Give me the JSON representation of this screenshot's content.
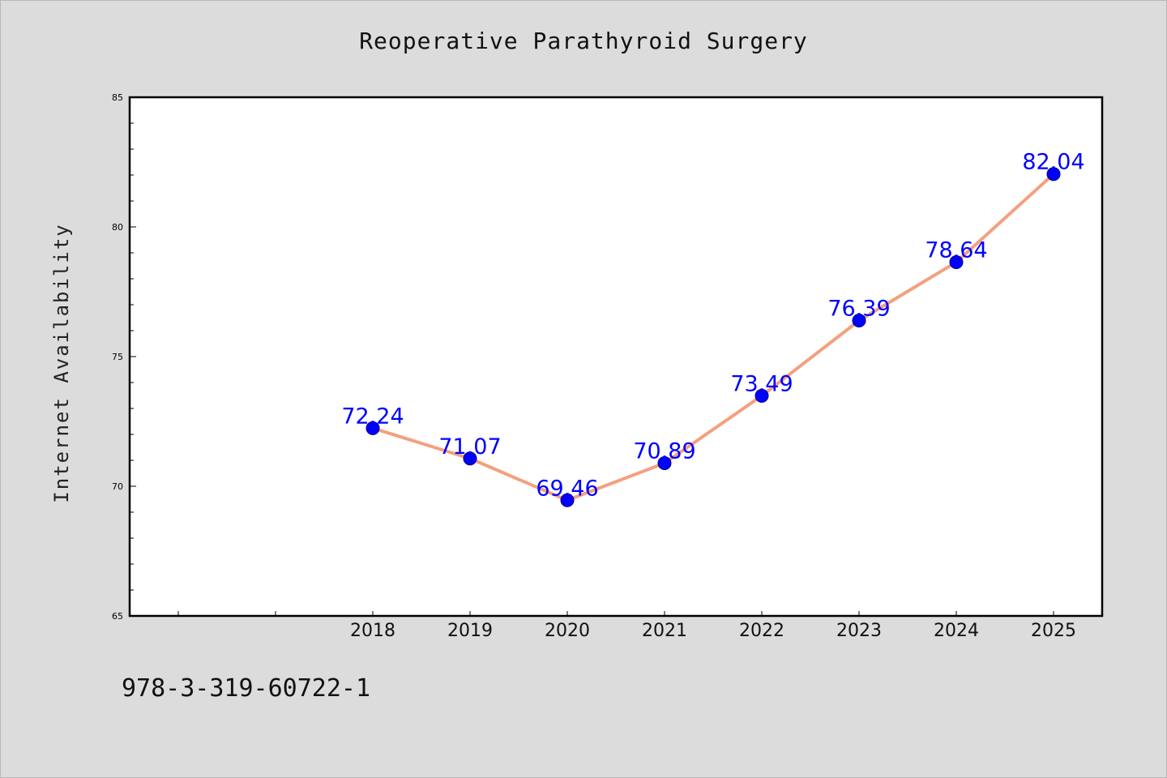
{
  "chart_data": {
    "type": "line",
    "title": "Reoperative Parathyroid Surgery",
    "xlabel": "",
    "ylabel": "Internet Availability",
    "x": [
      "2018",
      "2019",
      "2020",
      "2021",
      "2022",
      "2023",
      "2024",
      "2025"
    ],
    "series": [
      {
        "values": [
          72.24,
          71.07,
          69.46,
          70.89,
          73.49,
          76.39,
          78.64,
          82.04
        ],
        "labels": [
          "72.24",
          "71.07",
          "69.46",
          "70.89",
          "73.49",
          "76.39",
          "78.64",
          "82.04"
        ]
      }
    ],
    "ylim": [
      65,
      85
    ],
    "y_ticks": [
      "65",
      "70",
      "75",
      "80",
      "85"
    ],
    "grid": false,
    "legend": "none",
    "colors": {
      "line": "#f4a07e",
      "marker": "#0000ff",
      "label": "#0000ff",
      "axes": "#000000",
      "background": "#dcdcdc",
      "plot_background": "#ffffff"
    }
  },
  "footer": {
    "isbn": "978-3-319-60722-1"
  }
}
